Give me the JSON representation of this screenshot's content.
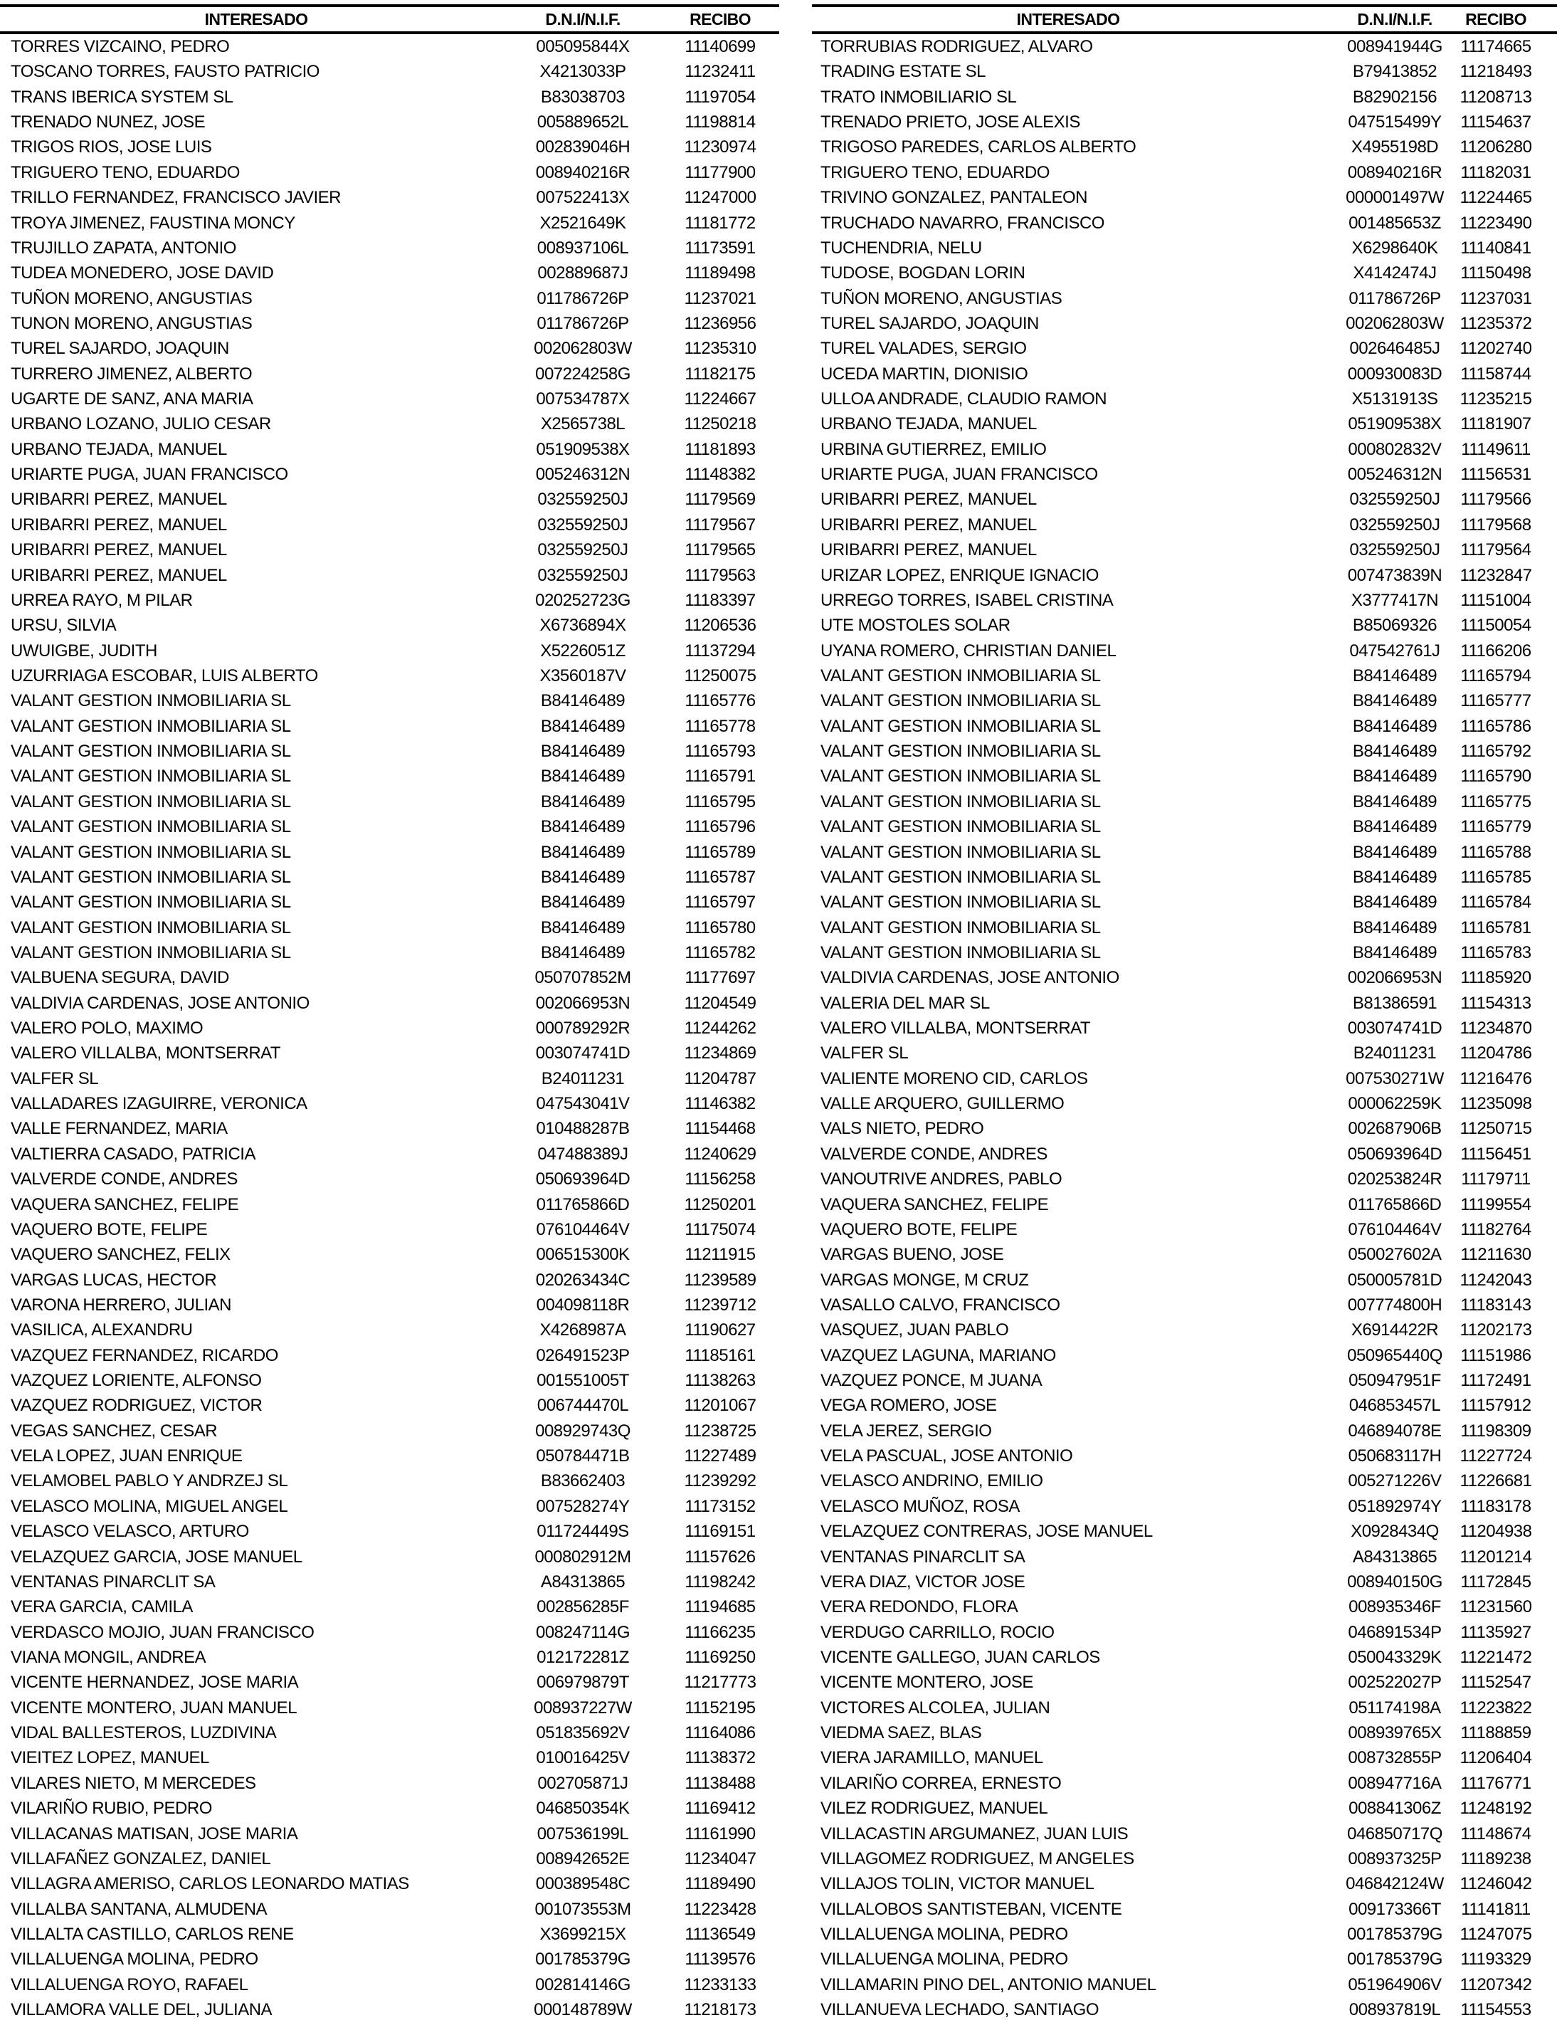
{
  "headers": {
    "name": "INTERESADO",
    "dni": "D.N.I/N.I.F.",
    "recibo": "RECIBO"
  },
  "left": [
    [
      "TORRES VIZCAINO, PEDRO",
      "005095844X",
      "11140699"
    ],
    [
      "TOSCANO TORRES, FAUSTO PATRICIO",
      "X4213033P",
      "11232411"
    ],
    [
      "TRANS IBERICA SYSTEM SL",
      "B83038703",
      "11197054"
    ],
    [
      "TRENADO NUNEZ, JOSE",
      "005889652L",
      "11198814"
    ],
    [
      "TRIGOS RIOS, JOSE LUIS",
      "002839046H",
      "11230974"
    ],
    [
      "TRIGUERO TENO, EDUARDO",
      "008940216R",
      "11177900"
    ],
    [
      "TRILLO FERNANDEZ, FRANCISCO JAVIER",
      "007522413X",
      "11247000"
    ],
    [
      "TROYA JIMENEZ, FAUSTINA MONCY",
      "X2521649K",
      "11181772"
    ],
    [
      "TRUJILLO ZAPATA, ANTONIO",
      "008937106L",
      "11173591"
    ],
    [
      "TUDEA MONEDERO, JOSE DAVID",
      "002889687J",
      "11189498"
    ],
    [
      "TUÑON MORENO, ANGUSTIAS",
      "011786726P",
      "11237021"
    ],
    [
      "TUNON MORENO, ANGUSTIAS",
      "011786726P",
      "11236956"
    ],
    [
      "TUREL SAJARDO, JOAQUIN",
      "002062803W",
      "11235310"
    ],
    [
      "TURRERO JIMENEZ, ALBERTO",
      "007224258G",
      "11182175"
    ],
    [
      "UGARTE DE SANZ, ANA MARIA",
      "007534787X",
      "11224667"
    ],
    [
      "URBANO LOZANO, JULIO CESAR",
      "X2565738L",
      "11250218"
    ],
    [
      "URBANO TEJADA, MANUEL",
      "051909538X",
      "11181893"
    ],
    [
      "URIARTE PUGA, JUAN FRANCISCO",
      "005246312N",
      "11148382"
    ],
    [
      "URIBARRI PEREZ, MANUEL",
      "032559250J",
      "11179569"
    ],
    [
      "URIBARRI PEREZ, MANUEL",
      "032559250J",
      "11179567"
    ],
    [
      "URIBARRI PEREZ, MANUEL",
      "032559250J",
      "11179565"
    ],
    [
      "URIBARRI PEREZ, MANUEL",
      "032559250J",
      "11179563"
    ],
    [
      "URREA RAYO, M PILAR",
      "020252723G",
      "11183397"
    ],
    [
      "URSU, SILVIA",
      "X6736894X",
      "11206536"
    ],
    [
      "UWUIGBE, JUDITH",
      "X5226051Z",
      "11137294"
    ],
    [
      "UZURRIAGA ESCOBAR, LUIS ALBERTO",
      "X3560187V",
      "11250075"
    ],
    [
      "VALANT GESTION INMOBILIARIA SL",
      "B84146489",
      "11165776"
    ],
    [
      "VALANT GESTION INMOBILIARIA SL",
      "B84146489",
      "11165778"
    ],
    [
      "VALANT GESTION INMOBILIARIA SL",
      "B84146489",
      "11165793"
    ],
    [
      "VALANT GESTION INMOBILIARIA SL",
      "B84146489",
      "11165791"
    ],
    [
      "VALANT GESTION INMOBILIARIA SL",
      "B84146489",
      "11165795"
    ],
    [
      "VALANT GESTION INMOBILIARIA SL",
      "B84146489",
      "11165796"
    ],
    [
      "VALANT GESTION INMOBILIARIA SL",
      "B84146489",
      "11165789"
    ],
    [
      "VALANT GESTION INMOBILIARIA SL",
      "B84146489",
      "11165787"
    ],
    [
      "VALANT GESTION INMOBILIARIA SL",
      "B84146489",
      "11165797"
    ],
    [
      "VALANT GESTION INMOBILIARIA SL",
      "B84146489",
      "11165780"
    ],
    [
      "VALANT GESTION INMOBILIARIA SL",
      "B84146489",
      "11165782"
    ],
    [
      "VALBUENA SEGURA, DAVID",
      "050707852M",
      "11177697"
    ],
    [
      "VALDIVIA CARDENAS, JOSE ANTONIO",
      "002066953N",
      "11204549"
    ],
    [
      "VALERO POLO, MAXIMO",
      "000789292R",
      "11244262"
    ],
    [
      "VALERO VILLALBA, MONTSERRAT",
      "003074741D",
      "11234869"
    ],
    [
      "VALFER SL",
      "B24011231",
      "11204787"
    ],
    [
      "VALLADARES IZAGUIRRE, VERONICA",
      "047543041V",
      "11146382"
    ],
    [
      "VALLE FERNANDEZ, MARIA",
      "010488287B",
      "11154468"
    ],
    [
      "VALTIERRA CASADO, PATRICIA",
      "047488389J",
      "11240629"
    ],
    [
      "VALVERDE CONDE, ANDRES",
      "050693964D",
      "11156258"
    ],
    [
      "VAQUERA SANCHEZ, FELIPE",
      "011765866D",
      "11250201"
    ],
    [
      "VAQUERO BOTE, FELIPE",
      "076104464V",
      "11175074"
    ],
    [
      "VAQUERO SANCHEZ, FELIX",
      "006515300K",
      "11211915"
    ],
    [
      "VARGAS LUCAS, HECTOR",
      "020263434C",
      "11239589"
    ],
    [
      "VARONA HERRERO, JULIAN",
      "004098118R",
      "11239712"
    ],
    [
      "VASILICA, ALEXANDRU",
      "X4268987A",
      "11190627"
    ],
    [
      "VAZQUEZ FERNANDEZ, RICARDO",
      "026491523P",
      "11185161"
    ],
    [
      "VAZQUEZ LORIENTE, ALFONSO",
      "001551005T",
      "11138263"
    ],
    [
      "VAZQUEZ RODRIGUEZ, VICTOR",
      "006744470L",
      "11201067"
    ],
    [
      "VEGAS SANCHEZ, CESAR",
      "008929743Q",
      "11238725"
    ],
    [
      "VELA LOPEZ, JUAN ENRIQUE",
      "050784471B",
      "11227489"
    ],
    [
      "VELAMOBEL PABLO Y ANDRZEJ SL",
      "B83662403",
      "11239292"
    ],
    [
      "VELASCO MOLINA, MIGUEL ANGEL",
      "007528274Y",
      "11173152"
    ],
    [
      "VELASCO VELASCO, ARTURO",
      "011724449S",
      "11169151"
    ],
    [
      "VELAZQUEZ GARCIA, JOSE MANUEL",
      "000802912M",
      "11157626"
    ],
    [
      "VENTANAS PINARCLIT SA",
      "A84313865",
      "11198242"
    ],
    [
      "VERA GARCIA, CAMILA",
      "002856285F",
      "11194685"
    ],
    [
      "VERDASCO MOJIO, JUAN FRANCISCO",
      "008247114G",
      "11166235"
    ],
    [
      "VIANA MONGIL, ANDREA",
      "012172281Z",
      "11169250"
    ],
    [
      "VICENTE HERNANDEZ, JOSE MARIA",
      "006979879T",
      "11217773"
    ],
    [
      "VICENTE MONTERO, JUAN MANUEL",
      "008937227W",
      "11152195"
    ],
    [
      "VIDAL BALLESTEROS, LUZDIVINA",
      "051835692V",
      "11164086"
    ],
    [
      "VIEITEZ LOPEZ, MANUEL",
      "010016425V",
      "11138372"
    ],
    [
      "VILARES NIETO, M MERCEDES",
      "002705871J",
      "11138488"
    ],
    [
      "VILARIÑO RUBIO, PEDRO",
      "046850354K",
      "11169412"
    ],
    [
      "VILLACANAS MATISAN, JOSE MARIA",
      "007536199L",
      "11161990"
    ],
    [
      "VILLAFAÑEZ GONZALEZ, DANIEL",
      "008942652E",
      "11234047"
    ],
    [
      "VILLAGRA AMERISO, CARLOS LEONARDO MATIAS",
      "000389548C",
      "11189490"
    ],
    [
      "VILLALBA SANTANA, ALMUDENA",
      "001073553M",
      "11223428"
    ],
    [
      "VILLALTA CASTILLO, CARLOS RENE",
      "X3699215X",
      "11136549"
    ],
    [
      "VILLALUENGA MOLINA, PEDRO",
      "001785379G",
      "11139576"
    ],
    [
      "VILLALUENGA ROYO, RAFAEL",
      "002814146G",
      "11233133"
    ],
    [
      "VILLAMORA VALLE DEL, JULIANA",
      "000148789W",
      "11218173"
    ]
  ],
  "right": [
    [
      "TORRUBIAS RODRIGUEZ, ALVARO",
      "008941944G",
      "11174665"
    ],
    [
      "TRADING ESTATE SL",
      "B79413852",
      "11218493"
    ],
    [
      "TRATO INMOBILIARIO SL",
      "B82902156",
      "11208713"
    ],
    [
      "TRENADO PRIETO, JOSE ALEXIS",
      "047515499Y",
      "11154637"
    ],
    [
      "TRIGOSO PAREDES, CARLOS ALBERTO",
      "X4955198D",
      "11206280"
    ],
    [
      "TRIGUERO TENO, EDUARDO",
      "008940216R",
      "11182031"
    ],
    [
      "TRIVINO GONZALEZ, PANTALEON",
      "000001497W",
      "11224465"
    ],
    [
      "TRUCHADO NAVARRO, FRANCISCO",
      "001485653Z",
      "11223490"
    ],
    [
      "TUCHENDRIA, NELU",
      "X6298640K",
      "11140841"
    ],
    [
      "TUDOSE, BOGDAN LORIN",
      "X4142474J",
      "11150498"
    ],
    [
      "TUÑON MORENO, ANGUSTIAS",
      "011786726P",
      "11237031"
    ],
    [
      "TUREL SAJARDO, JOAQUIN",
      "002062803W",
      "11235372"
    ],
    [
      "TUREL VALADES, SERGIO",
      "002646485J",
      "11202740"
    ],
    [
      "UCEDA MARTIN, DIONISIO",
      "000930083D",
      "11158744"
    ],
    [
      "ULLOA ANDRADE, CLAUDIO RAMON",
      "X5131913S",
      "11235215"
    ],
    [
      "URBANO TEJADA, MANUEL",
      "051909538X",
      "11181907"
    ],
    [
      "URBINA GUTIERREZ, EMILIO",
      "000802832V",
      "11149611"
    ],
    [
      "URIARTE PUGA, JUAN FRANCISCO",
      "005246312N",
      "11156531"
    ],
    [
      "URIBARRI PEREZ, MANUEL",
      "032559250J",
      "11179566"
    ],
    [
      "URIBARRI PEREZ, MANUEL",
      "032559250J",
      "11179568"
    ],
    [
      "URIBARRI PEREZ, MANUEL",
      "032559250J",
      "11179564"
    ],
    [
      "URIZAR LOPEZ, ENRIQUE IGNACIO",
      "007473839N",
      "11232847"
    ],
    [
      "URREGO TORRES, ISABEL CRISTINA",
      "X3777417N",
      "11151004"
    ],
    [
      "UTE MOSTOLES SOLAR",
      "B85069326",
      "11150054"
    ],
    [
      "UYANA ROMERO, CHRISTIAN DANIEL",
      "047542761J",
      "11166206"
    ],
    [
      "VALANT GESTION INMOBILIARIA SL",
      "B84146489",
      "11165794"
    ],
    [
      "VALANT GESTION INMOBILIARIA SL",
      "B84146489",
      "11165777"
    ],
    [
      "VALANT GESTION INMOBILIARIA SL",
      "B84146489",
      "11165786"
    ],
    [
      "VALANT GESTION INMOBILIARIA SL",
      "B84146489",
      "11165792"
    ],
    [
      "VALANT GESTION INMOBILIARIA SL",
      "B84146489",
      "11165790"
    ],
    [
      "VALANT GESTION INMOBILIARIA SL",
      "B84146489",
      "11165775"
    ],
    [
      "VALANT GESTION INMOBILIARIA SL",
      "B84146489",
      "11165779"
    ],
    [
      "VALANT GESTION INMOBILIARIA SL",
      "B84146489",
      "11165788"
    ],
    [
      "VALANT GESTION INMOBILIARIA SL",
      "B84146489",
      "11165785"
    ],
    [
      "VALANT GESTION INMOBILIARIA SL",
      "B84146489",
      "11165784"
    ],
    [
      "VALANT GESTION INMOBILIARIA SL",
      "B84146489",
      "11165781"
    ],
    [
      "VALANT GESTION INMOBILIARIA SL",
      "B84146489",
      "11165783"
    ],
    [
      "VALDIVIA CARDENAS, JOSE ANTONIO",
      "002066953N",
      "11185920"
    ],
    [
      "VALERIA DEL MAR SL",
      "B81386591",
      "11154313"
    ],
    [
      "VALERO VILLALBA, MONTSERRAT",
      "003074741D",
      "11234870"
    ],
    [
      "VALFER SL",
      "B24011231",
      "11204786"
    ],
    [
      "VALIENTE MORENO CID, CARLOS",
      "007530271W",
      "11216476"
    ],
    [
      "VALLE ARQUERO, GUILLERMO",
      "000062259K",
      "11235098"
    ],
    [
      "VALS NIETO, PEDRO",
      "002687906B",
      "11250715"
    ],
    [
      "VALVERDE CONDE, ANDRES",
      "050693964D",
      "11156451"
    ],
    [
      "VANOUTRIVE ANDRES, PABLO",
      "020253824R",
      "11179711"
    ],
    [
      "VAQUERA SANCHEZ, FELIPE",
      "011765866D",
      "11199554"
    ],
    [
      "VAQUERO BOTE, FELIPE",
      "076104464V",
      "11182764"
    ],
    [
      "VARGAS BUENO, JOSE",
      "050027602A",
      "11211630"
    ],
    [
      "VARGAS MONGE, M CRUZ",
      "050005781D",
      "11242043"
    ],
    [
      "VASALLO CALVO, FRANCISCO",
      "007774800H",
      "11183143"
    ],
    [
      "VASQUEZ, JUAN PABLO",
      "X6914422R",
      "11202173"
    ],
    [
      "VAZQUEZ LAGUNA, MARIANO",
      "050965440Q",
      "11151986"
    ],
    [
      "VAZQUEZ PONCE, M JUANA",
      "050947951F",
      "11172491"
    ],
    [
      "VEGA ROMERO, JOSE",
      "046853457L",
      "11157912"
    ],
    [
      "VELA JEREZ, SERGIO",
      "046894078E",
      "11198309"
    ],
    [
      "VELA PASCUAL, JOSE ANTONIO",
      "050683117H",
      "11227724"
    ],
    [
      "VELASCO ANDRINO, EMILIO",
      "005271226V",
      "11226681"
    ],
    [
      "VELASCO MUÑOZ, ROSA",
      "051892974Y",
      "11183178"
    ],
    [
      "VELAZQUEZ CONTRERAS, JOSE MANUEL",
      "X0928434Q",
      "11204938"
    ],
    [
      "VENTANAS PINARCLIT SA",
      "A84313865",
      "11201214"
    ],
    [
      "VERA DIAZ, VICTOR JOSE",
      "008940150G",
      "11172845"
    ],
    [
      "VERA REDONDO, FLORA",
      "008935346F",
      "11231560"
    ],
    [
      "VERDUGO CARRILLO, ROCIO",
      "046891534P",
      "11135927"
    ],
    [
      "VICENTE GALLEGO, JUAN CARLOS",
      "050043329K",
      "11221472"
    ],
    [
      "VICENTE MONTERO, JOSE",
      "002522027P",
      "11152547"
    ],
    [
      "VICTORES ALCOLEA, JULIAN",
      "051174198A",
      "11223822"
    ],
    [
      "VIEDMA SAEZ, BLAS",
      "008939765X",
      "11188859"
    ],
    [
      "VIERA JARAMILLO, MANUEL",
      "008732855P",
      "11206404"
    ],
    [
      "VILARIÑO CORREA, ERNESTO",
      "008947716A",
      "11176771"
    ],
    [
      "VILEZ RODRIGUEZ, MANUEL",
      "008841306Z",
      "11248192"
    ],
    [
      "VILLACASTIN ARGUMANEZ, JUAN LUIS",
      "046850717Q",
      "11148674"
    ],
    [
      "VILLAGOMEZ RODRIGUEZ, M ANGELES",
      "008937325P",
      "11189238"
    ],
    [
      "VILLAJOS TOLIN, VICTOR MANUEL",
      "046842124W",
      "11246042"
    ],
    [
      "VILLALOBOS SANTISTEBAN, VICENTE",
      "009173366T",
      "11141811"
    ],
    [
      "VILLALUENGA MOLINA, PEDRO",
      "001785379G",
      "11247075"
    ],
    [
      "VILLALUENGA MOLINA, PEDRO",
      "001785379G",
      "11193329"
    ],
    [
      "VILLAMARIN PINO DEL, ANTONIO MANUEL",
      "051964906V",
      "11207342"
    ],
    [
      "VILLANUEVA LECHADO, SANTIAGO",
      "008937819L",
      "11154553"
    ]
  ]
}
